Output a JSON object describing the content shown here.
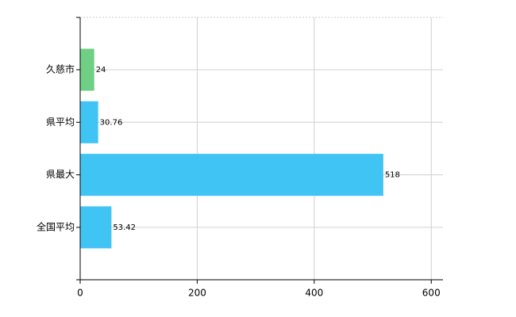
{
  "chart_data": {
    "type": "barh",
    "categories": [
      "久慈市",
      "県平均",
      "県最大",
      "全国平均"
    ],
    "values": [
      24,
      30.76,
      518,
      53.42
    ],
    "colors": [
      "#6fcf84",
      "#40c4f4",
      "#40c4f4",
      "#40c4f4"
    ],
    "xlim": [
      0,
      620
    ],
    "xticks": [
      0,
      200,
      400,
      600
    ],
    "grid": true
  }
}
